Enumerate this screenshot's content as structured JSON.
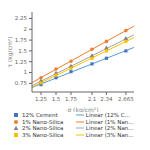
{
  "chart_data": {
    "type": "scatter",
    "xlabel": "σ (kg/cm²)",
    "ylabel": "τ (kg/cm²)",
    "xlim": [
      1.1,
      2.8
    ],
    "ylim": [
      0.55,
      2.4
    ],
    "xticks": [
      1.25,
      1.5,
      1.75,
      2.1,
      2.34,
      2.665
    ],
    "yticks": [
      0.75,
      1,
      1.25,
      1.5,
      1.75,
      2,
      2.25
    ],
    "grid": false,
    "legend": "bottom",
    "series": [
      {
        "name": "12% Cement",
        "type": "scatter",
        "marker": "square",
        "color": "#4472c4",
        "x": [
          1.25,
          1.5,
          1.75,
          2.1,
          2.34,
          2.665
        ],
        "values": [
          0.72,
          0.88,
          1.02,
          1.2,
          1.33,
          1.5
        ]
      },
      {
        "name": "1% Nano-Silica",
        "type": "scatter",
        "marker": "circle",
        "color": "#ed7d31",
        "x": [
          1.25,
          1.5,
          1.75,
          2.1,
          2.34,
          2.665
        ],
        "values": [
          0.88,
          1.08,
          1.26,
          1.54,
          1.72,
          1.97
        ]
      },
      {
        "name": "2% Nano-Silica",
        "type": "scatter",
        "marker": "triangle",
        "color": "#7f7f7f",
        "x": [
          1.25,
          1.5,
          1.75,
          2.1,
          2.34,
          2.665
        ],
        "values": [
          0.8,
          0.98,
          1.14,
          1.38,
          1.56,
          1.78
        ]
      },
      {
        "name": "3% Nano-Silica",
        "type": "scatter",
        "marker": "square",
        "color": "#ffc000",
        "x": [
          1.25,
          1.5,
          1.75,
          2.1,
          2.34,
          2.665
        ],
        "values": [
          0.76,
          0.94,
          1.1,
          1.33,
          1.5,
          1.72
        ]
      },
      {
        "name": "Linear (12% C...",
        "type": "line",
        "color": "#5b9bd5",
        "x": [
          1.1,
          2.8
        ],
        "values": [
          0.6535,
          1.5804
        ]
      },
      {
        "name": "Linear (1% Nan...",
        "type": "line",
        "color": "#ed7d31",
        "x": [
          1.1,
          2.8
        ],
        "values": [
          0.7665,
          2.0745
        ]
      },
      {
        "name": "Linear (2% Nan...",
        "type": "line",
        "color": "#a5a5a5",
        "x": [
          1.1,
          2.8
        ],
        "values": [
          0.6963,
          1.8723
        ]
      },
      {
        "name": "Linear (3% Nan...",
        "type": "line",
        "color": "#ffc000",
        "x": [
          1.1,
          2.8
        ],
        "values": [
          0.6623,
          1.809
        ]
      }
    ]
  }
}
